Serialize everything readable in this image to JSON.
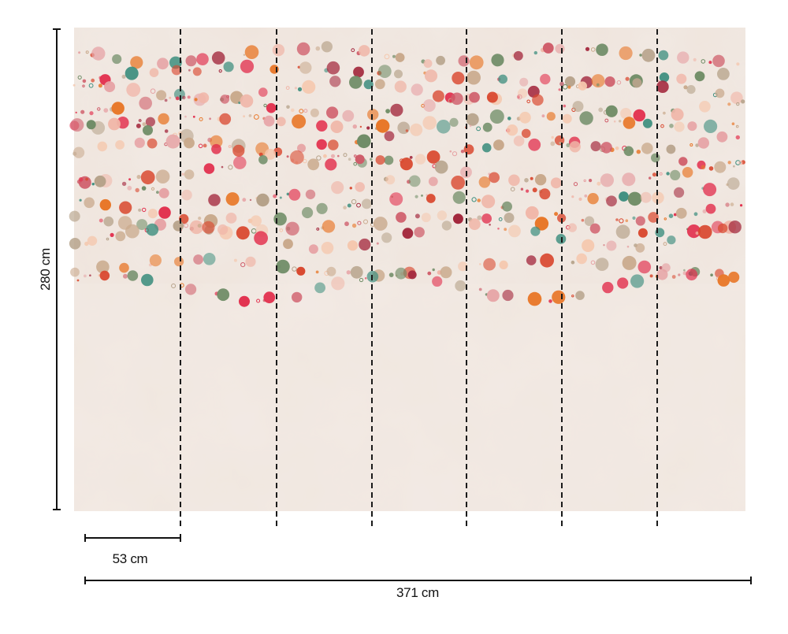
{
  "dimensions": {
    "height_label": "280 cm",
    "panel_width_label": "53 cm",
    "total_width_label": "371 cm"
  },
  "wallpaper": {
    "panel_count": 7,
    "background_color": "#efe4dc",
    "dot_palette": [
      "#e2324f",
      "#d9482f",
      "#e8782a",
      "#6f8c66",
      "#3f8f7f",
      "#a3283d",
      "#c9a98c",
      "#f0b6a8",
      "#f5c7ad",
      "#b6a28a",
      "#e6a2a4",
      "#cf5d6a"
    ]
  }
}
